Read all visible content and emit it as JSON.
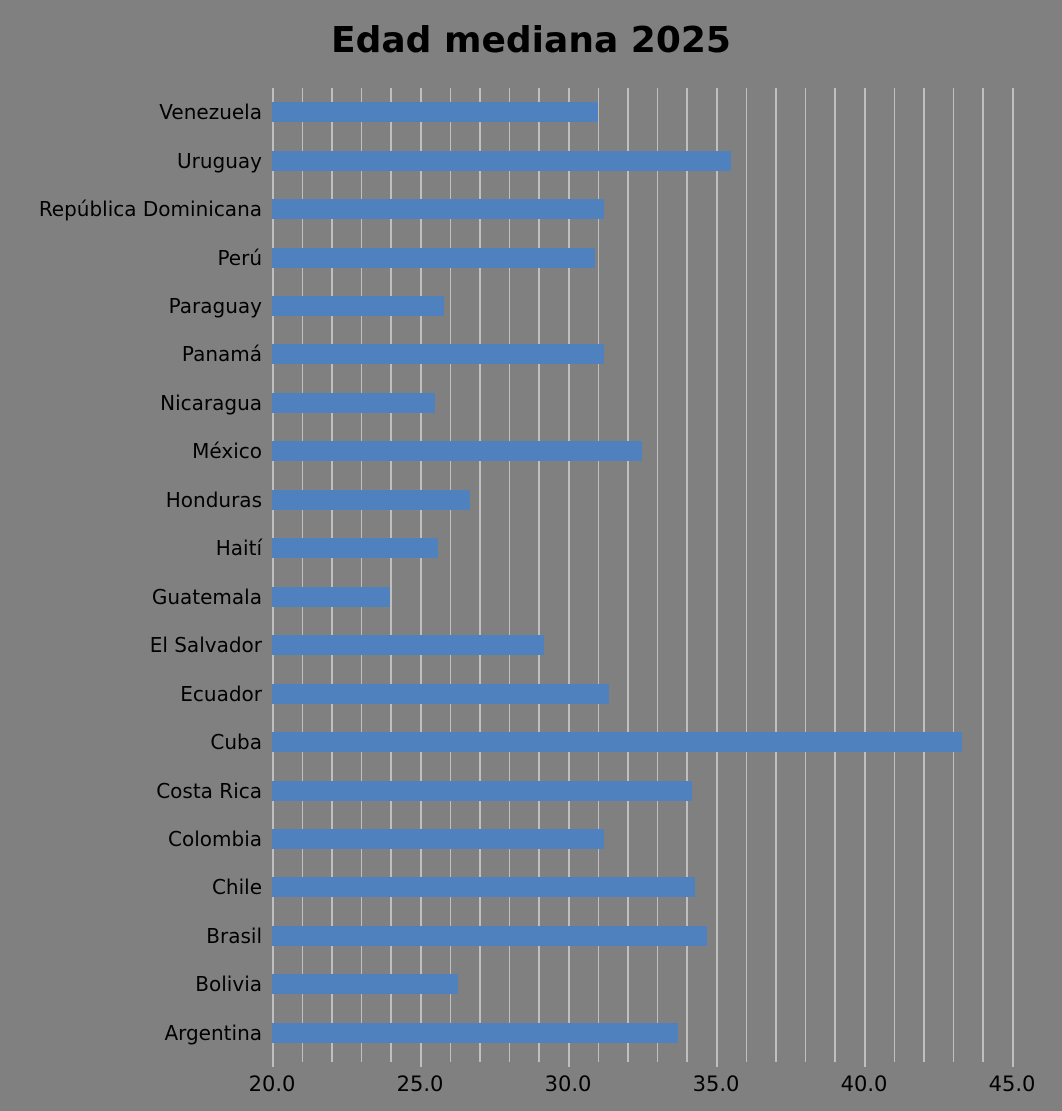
{
  "title": "Edad mediana 2025",
  "colors": {
    "background": "#808080",
    "bar": "#4E81BD",
    "gridline": "#BFBFBF",
    "text": "#000000"
  },
  "chart_data": {
    "type": "bar",
    "orientation": "horizontal",
    "title": "Edad mediana 2025",
    "xlabel": "",
    "ylabel": "",
    "grid": true,
    "legend": false,
    "xlim": [
      20,
      45
    ],
    "minor_grid_step": 1,
    "x_tick_labels": [
      "20.0",
      "25.0",
      "30.0",
      "35.0",
      "40.0",
      "45.0"
    ],
    "x_tick_values": [
      20,
      25,
      30,
      35,
      40,
      45
    ],
    "categories": [
      "Venezuela",
      "Uruguay",
      "República Dominicana",
      "Perú",
      "Paraguay",
      "Panamá",
      "Nicaragua",
      "México",
      "Honduras",
      "Haití",
      "Guatemala",
      "El Salvador",
      "Ecuador",
      "Cuba",
      "Costa Rica",
      "Colombia",
      "Chile",
      "Brasil",
      "Bolivia",
      "Argentina"
    ],
    "values": [
      31.0,
      35.5,
      31.2,
      30.9,
      25.8,
      31.2,
      25.5,
      32.5,
      26.7,
      25.6,
      24.0,
      29.2,
      31.4,
      43.3,
      34.2,
      31.2,
      34.3,
      34.7,
      26.3,
      33.7
    ]
  }
}
